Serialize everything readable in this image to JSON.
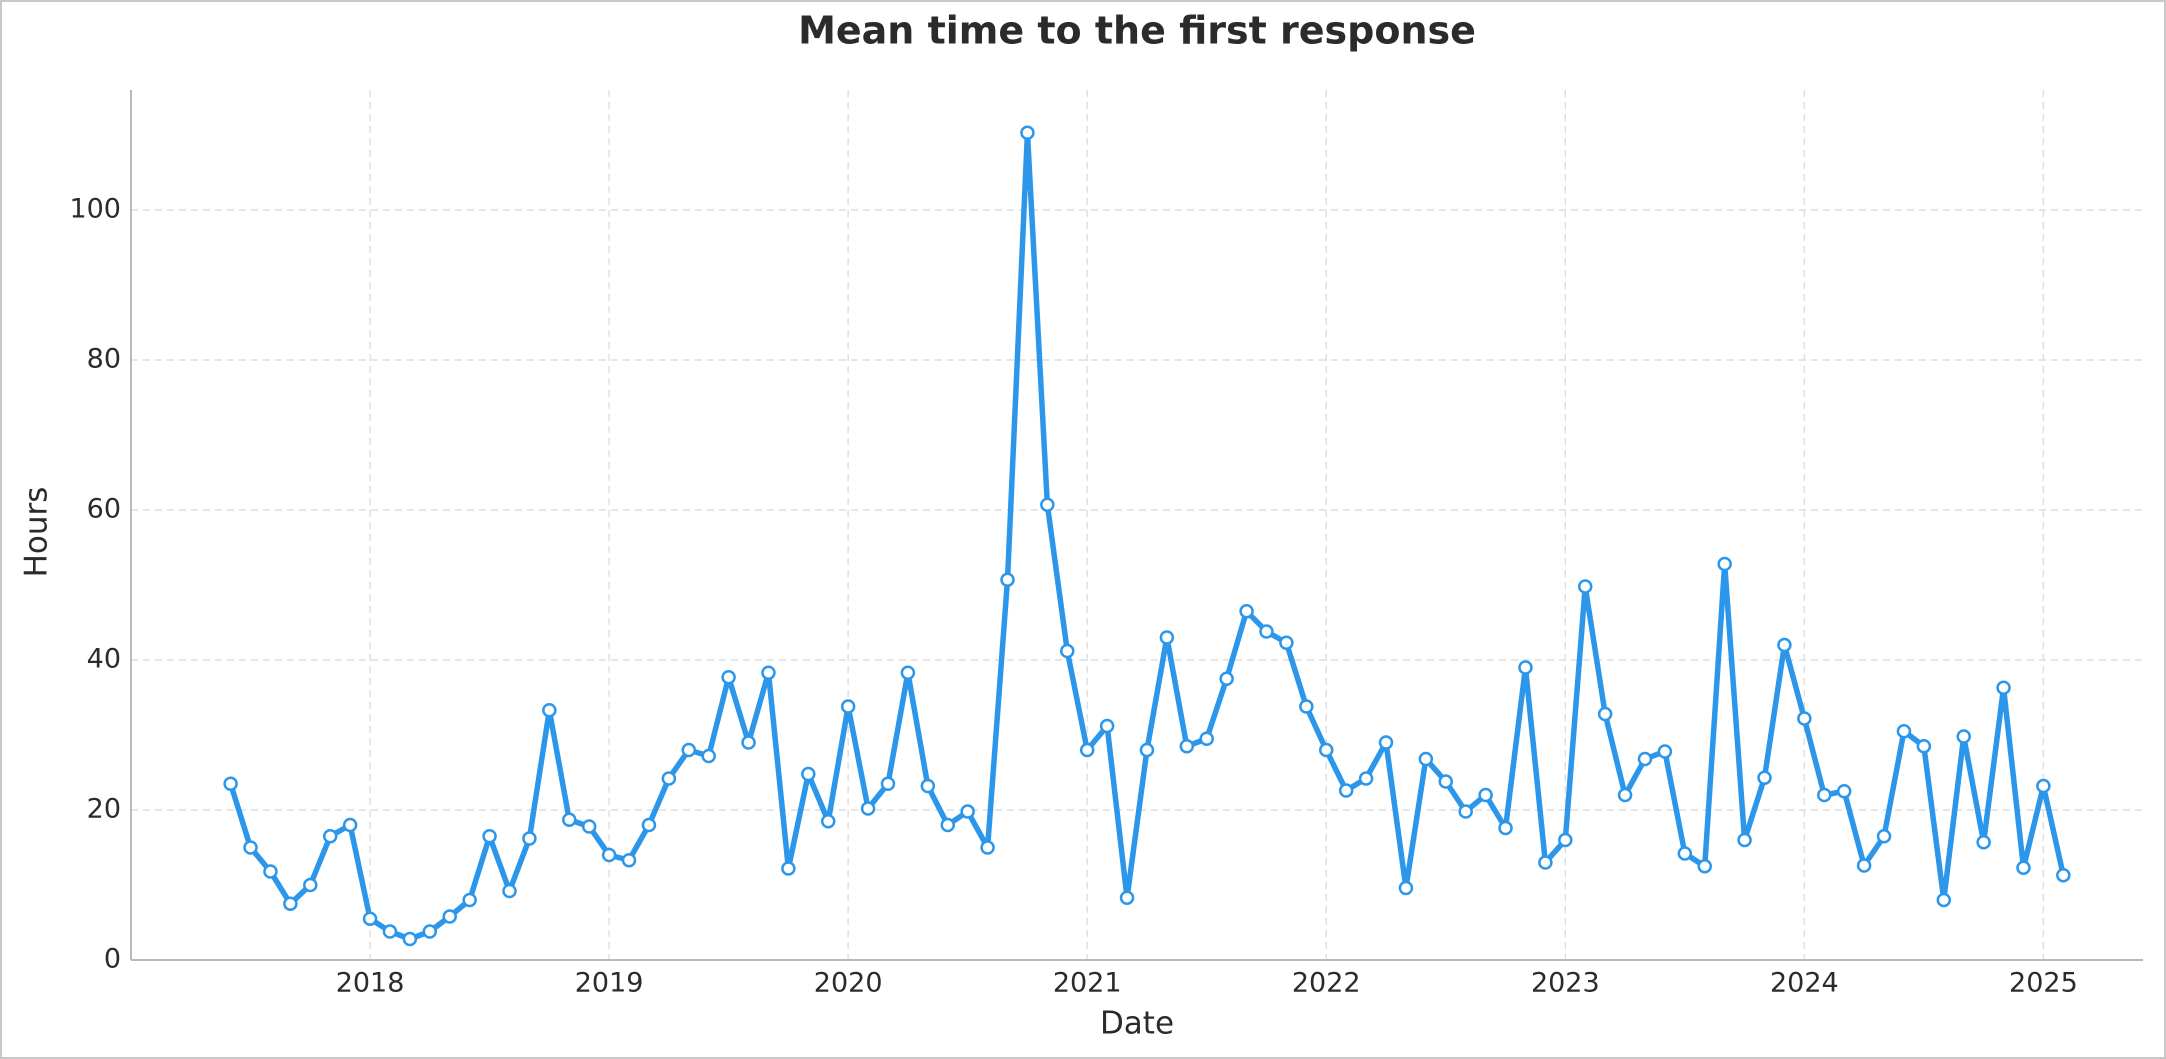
{
  "chart_data": {
    "type": "line",
    "title": "Mean time to the first response",
    "x_label": "Date",
    "y_label": "Hours",
    "x": [
      "2017-06",
      "2017-07",
      "2017-08",
      "2017-09",
      "2017-10",
      "2017-11",
      "2017-12",
      "2018-01",
      "2018-02",
      "2018-03",
      "2018-04",
      "2018-05",
      "2018-06",
      "2018-07",
      "2018-08",
      "2018-09",
      "2018-10",
      "2018-11",
      "2018-12",
      "2019-01",
      "2019-02",
      "2019-03",
      "2019-04",
      "2019-05",
      "2019-06",
      "2019-07",
      "2019-08",
      "2019-09",
      "2019-10",
      "2019-11",
      "2019-12",
      "2020-01",
      "2020-02",
      "2020-03",
      "2020-04",
      "2020-05",
      "2020-06",
      "2020-07",
      "2020-08",
      "2020-09",
      "2020-10",
      "2020-11",
      "2020-12",
      "2021-01",
      "2021-02",
      "2021-03",
      "2021-04",
      "2021-05",
      "2021-06",
      "2021-07",
      "2021-08",
      "2021-09",
      "2021-10",
      "2021-11",
      "2021-12",
      "2022-01",
      "2022-02",
      "2022-03",
      "2022-04",
      "2022-05",
      "2022-06",
      "2022-07",
      "2022-08",
      "2022-09",
      "2022-10",
      "2022-11",
      "2022-12",
      "2023-01",
      "2023-02",
      "2023-03",
      "2023-04",
      "2023-05",
      "2023-06",
      "2023-07",
      "2023-08",
      "2023-09",
      "2023-10",
      "2023-11",
      "2023-12",
      "2024-01",
      "2024-02",
      "2024-03",
      "2024-04",
      "2024-05",
      "2024-06",
      "2024-07",
      "2024-08",
      "2024-09",
      "2024-10",
      "2024-11",
      "2024-12",
      "2025-01",
      "2025-02"
    ],
    "series": [
      {
        "name": "Hours",
        "color": "#2c97ea",
        "values": [
          23.5,
          15,
          11.8,
          7.5,
          10,
          16.5,
          18,
          5.5,
          3.8,
          2.8,
          3.8,
          5.8,
          8,
          16.5,
          9.2,
          16.2,
          33.3,
          18.7,
          17.8,
          14,
          13.3,
          18,
          24.2,
          28,
          27.2,
          37.7,
          29,
          38.3,
          12.2,
          24.8,
          18.5,
          33.8,
          20.2,
          23.5,
          38.3,
          23.2,
          18,
          19.8,
          15,
          50.7,
          110.3,
          60.7,
          41.2,
          28,
          31.2,
          8.3,
          28,
          43,
          28.5,
          29.5,
          37.5,
          46.5,
          43.8,
          42.3,
          33.8,
          28,
          22.6,
          24.2,
          29,
          9.6,
          26.8,
          23.8,
          19.8,
          22,
          17.6,
          39,
          13,
          16,
          49.8,
          32.8,
          22,
          26.8,
          27.8,
          14.2,
          12.5,
          52.8,
          16,
          24.3,
          42,
          32.2,
          22,
          22.5,
          12.6,
          16.5,
          30.5,
          28.5,
          8,
          29.8,
          15.7,
          36.3,
          12.3,
          23.2,
          11.3
        ]
      }
    ],
    "xlim": [
      "2017-01",
      "2025-06"
    ],
    "xticks": [
      "2018",
      "2019",
      "2020",
      "2021",
      "2022",
      "2023",
      "2024",
      "2025"
    ],
    "ylim": [
      0,
      116
    ],
    "yticks": [
      0,
      20,
      40,
      60,
      80,
      100
    ],
    "grid": true
  }
}
